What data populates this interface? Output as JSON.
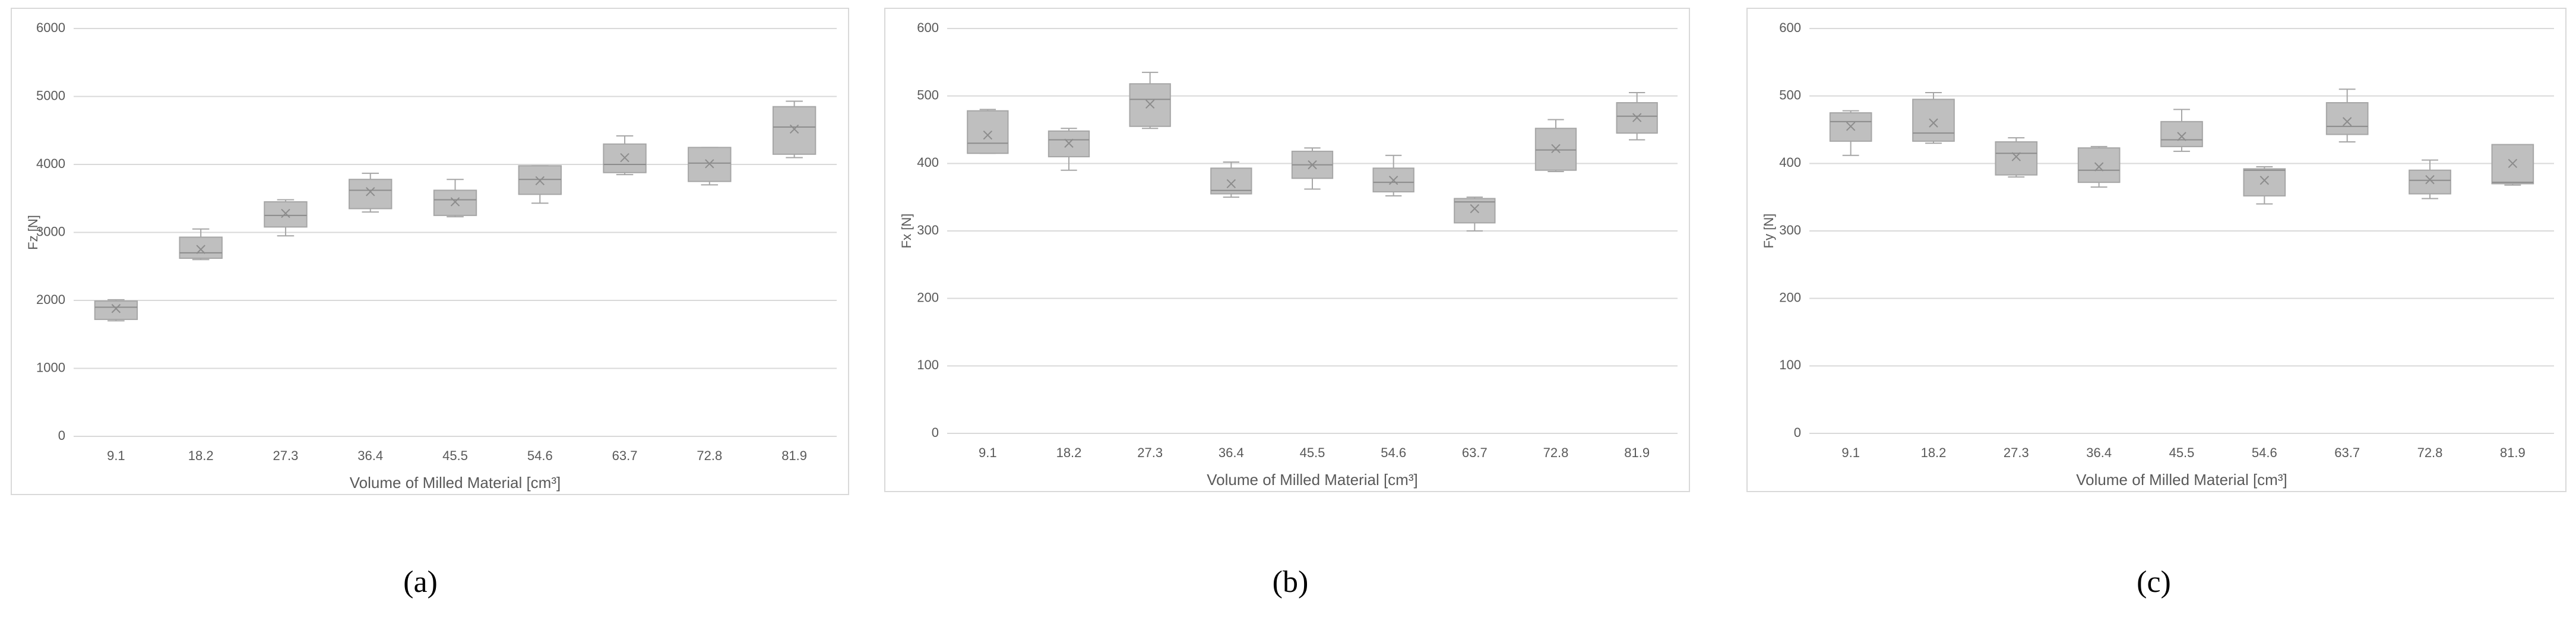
{
  "chart_data": [
    {
      "type": "box",
      "caption": "(a)",
      "x_label": "Volume of Milled Material [cm³]",
      "y_label": "Fz [N]",
      "categories": [
        "9.1",
        "18.2",
        "27.3",
        "36.4",
        "45.5",
        "54.6",
        "63.7",
        "72.8",
        "81.9"
      ],
      "min": [
        1700,
        2600,
        2950,
        3300,
        3230,
        3430,
        3850,
        3700,
        4100
      ],
      "q1": [
        1720,
        2620,
        3080,
        3350,
        3250,
        3560,
        3880,
        3750,
        4150
      ],
      "median": [
        1900,
        2700,
        3250,
        3620,
        3480,
        3780,
        4000,
        4020,
        4550
      ],
      "q3": [
        1990,
        2930,
        3450,
        3780,
        3620,
        3980,
        4300,
        4250,
        4850
      ],
      "max": [
        2010,
        3050,
        3480,
        3870,
        3780,
        3980,
        4420,
        4250,
        4930
      ],
      "mean": [
        1880,
        2750,
        3280,
        3600,
        3450,
        3760,
        4100,
        4010,
        4520
      ],
      "color": "#bfbfbf",
      "ylim": [
        0,
        6000
      ],
      "yticks": [
        0,
        1000,
        2000,
        3000,
        4000,
        5000,
        6000
      ],
      "grid": true
    },
    {
      "type": "box",
      "caption": "(b)",
      "x_label": "Volume of Milled Material [cm³]",
      "y_label": "Fx [N]",
      "categories": [
        "9.1",
        "18.2",
        "27.3",
        "36.4",
        "45.5",
        "54.6",
        "63.7",
        "72.8",
        "81.9"
      ],
      "min": [
        415,
        390,
        452,
        350,
        362,
        352,
        300,
        388,
        435
      ],
      "q1": [
        415,
        410,
        455,
        355,
        378,
        358,
        312,
        390,
        445
      ],
      "median": [
        430,
        435,
        495,
        360,
        398,
        372,
        343,
        420,
        470
      ],
      "q3": [
        478,
        448,
        518,
        393,
        418,
        393,
        348,
        452,
        490
      ],
      "max": [
        480,
        452,
        535,
        402,
        423,
        412,
        350,
        465,
        505
      ],
      "mean": [
        442,
        430,
        488,
        370,
        398,
        375,
        333,
        422,
        468
      ],
      "color": "#bfbfbf",
      "ylim": [
        0,
        600
      ],
      "yticks": [
        0,
        100,
        200,
        300,
        400,
        500,
        600
      ],
      "grid": true
    },
    {
      "type": "box",
      "caption": "(c)",
      "x_label": "Volume of Milled Material [cm³]",
      "y_label": "Fy [N]",
      "categories": [
        "9.1",
        "18.2",
        "27.3",
        "36.4",
        "45.5",
        "54.6",
        "63.7",
        "72.8",
        "81.9"
      ],
      "min": [
        412,
        430,
        380,
        365,
        418,
        340,
        432,
        348,
        368
      ],
      "q1": [
        433,
        433,
        383,
        372,
        425,
        352,
        443,
        355,
        370
      ],
      "median": [
        462,
        445,
        415,
        390,
        435,
        390,
        455,
        375,
        372
      ],
      "q3": [
        475,
        495,
        432,
        423,
        462,
        392,
        490,
        390,
        428
      ],
      "max": [
        478,
        505,
        438,
        425,
        480,
        395,
        510,
        405,
        428
      ],
      "mean": [
        455,
        460,
        410,
        395,
        440,
        375,
        462,
        376,
        400
      ],
      "color": "#bfbfbf",
      "ylim": [
        0,
        600
      ],
      "yticks": [
        0,
        100,
        200,
        300,
        400,
        500,
        600
      ],
      "grid": true
    }
  ]
}
